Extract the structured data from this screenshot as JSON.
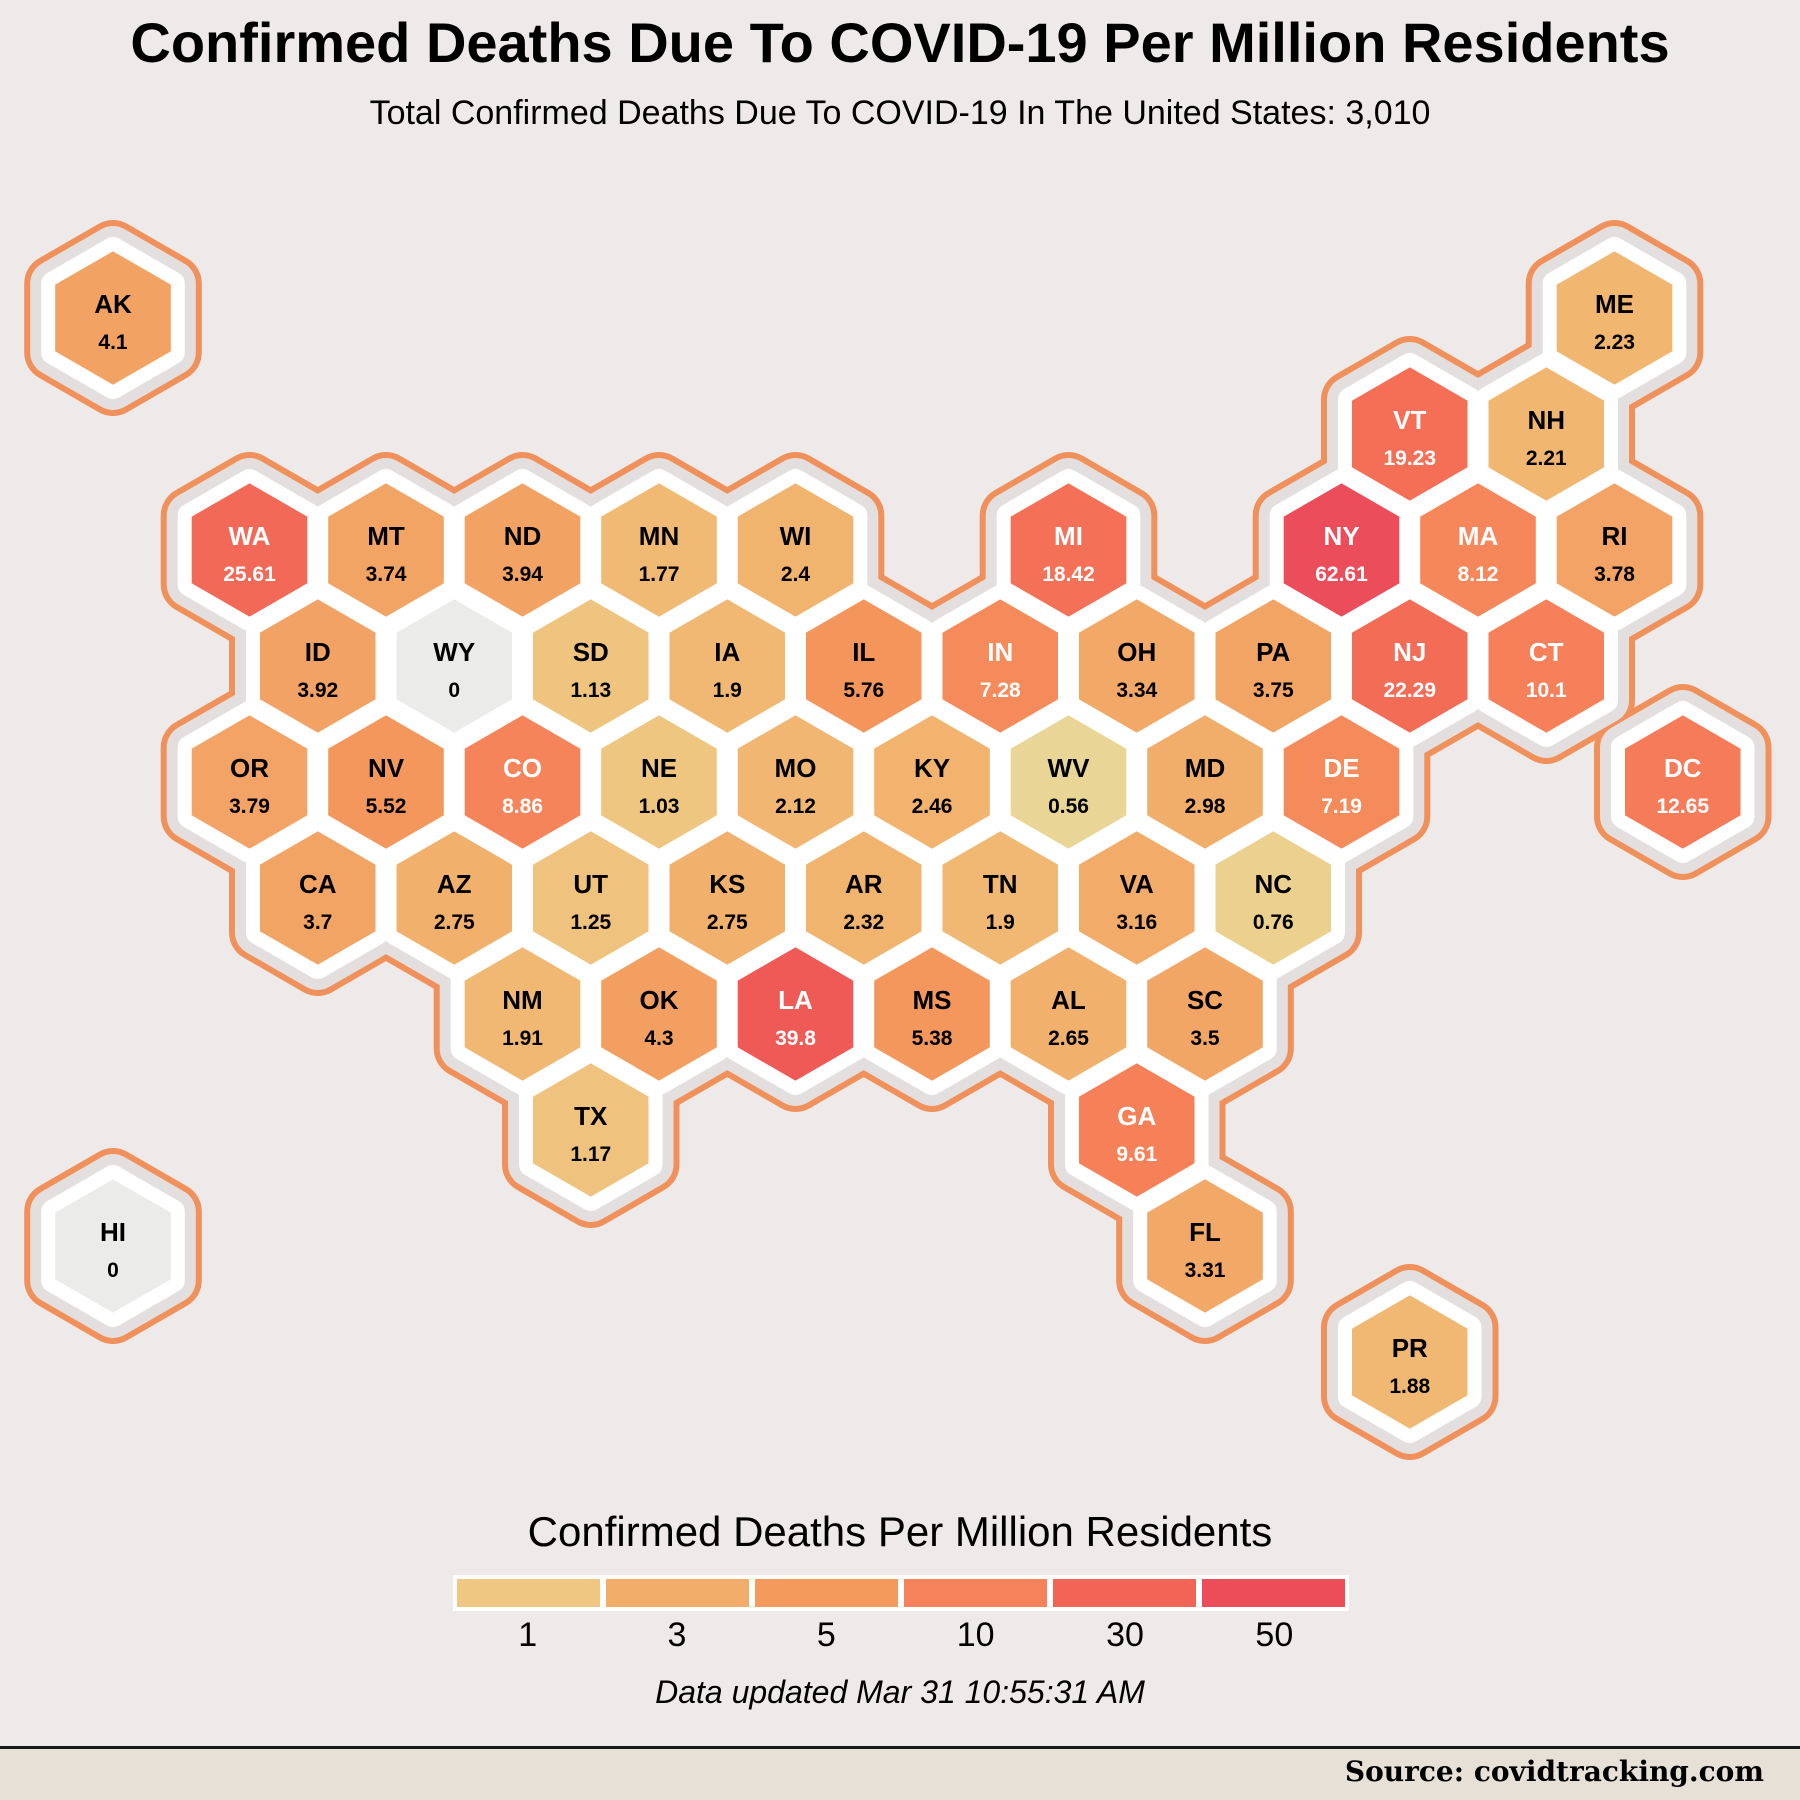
{
  "title": "Confirmed Deaths Due To COVID-19 Per Million Residents",
  "subtitle": "Total Confirmed Deaths Due To COVID-19 In The United States: 3,010",
  "legend": {
    "title": "Confirmed Deaths Per Million Residents",
    "labels": [
      "1",
      "3",
      "5",
      "10",
      "30",
      "50"
    ],
    "colors": [
      "#efc783",
      "#f2ad6b",
      "#f49a5d",
      "#f6825b",
      "#f26456",
      "#ec4d59"
    ]
  },
  "updated": "Data updated Mar 31 10:55:31 AM",
  "source": "Source: covidtracking.com",
  "chart_data": {
    "type": "heatmap",
    "title": "Confirmed Deaths Due To COVID-19 Per Million Residents",
    "subtitle": "Total Confirmed Deaths Due To COVID-19 In The United States: 3,010",
    "metric": "Confirmed deaths per million residents",
    "states": [
      {
        "abbr": "AK",
        "value": "4.1",
        "row": 0,
        "col": 0,
        "color": "#f2a262",
        "label_color": "#000000"
      },
      {
        "abbr": "ME",
        "value": "2.23",
        "row": 0,
        "col": 11,
        "color": "#f1b670",
        "label_color": "#000000"
      },
      {
        "abbr": "VT",
        "value": "19.23",
        "row": 1,
        "col": 9.5,
        "color": "#f46f56",
        "label_color": "#ffffff"
      },
      {
        "abbr": "NH",
        "value": "2.21",
        "row": 1,
        "col": 10.5,
        "color": "#f1b670",
        "label_color": "#000000"
      },
      {
        "abbr": "WA",
        "value": "25.61",
        "row": 2,
        "col": 1,
        "color": "#f26a57",
        "label_color": "#ffffff"
      },
      {
        "abbr": "MT",
        "value": "3.74",
        "row": 2,
        "col": 2,
        "color": "#f2a465",
        "label_color": "#000000"
      },
      {
        "abbr": "ND",
        "value": "3.94",
        "row": 2,
        "col": 3,
        "color": "#f2a263",
        "label_color": "#000000"
      },
      {
        "abbr": "MN",
        "value": "1.77",
        "row": 2,
        "col": 4,
        "color": "#f0ba74",
        "label_color": "#000000"
      },
      {
        "abbr": "WI",
        "value": "2.4",
        "row": 2,
        "col": 5,
        "color": "#f1b46f",
        "label_color": "#000000"
      },
      {
        "abbr": "MI",
        "value": "18.42",
        "row": 2,
        "col": 7,
        "color": "#f47157",
        "label_color": "#ffffff"
      },
      {
        "abbr": "NY",
        "value": "62.61",
        "row": 2,
        "col": 9,
        "color": "#ec4d5b",
        "label_color": "#ffffff"
      },
      {
        "abbr": "MA",
        "value": "8.12",
        "row": 2,
        "col": 10,
        "color": "#f5875a",
        "label_color": "#ffffff"
      },
      {
        "abbr": "RI",
        "value": "3.78",
        "row": 2,
        "col": 11,
        "color": "#f2a365",
        "label_color": "#000000"
      },
      {
        "abbr": "ID",
        "value": "3.92",
        "row": 3,
        "col": 1.5,
        "color": "#f2a264",
        "label_color": "#000000"
      },
      {
        "abbr": "WY",
        "value": "0",
        "row": 3,
        "col": 2.5,
        "color": "#ebebea",
        "label_color": "#000000"
      },
      {
        "abbr": "SD",
        "value": "1.13",
        "row": 3,
        "col": 3.5,
        "color": "#efc47f",
        "label_color": "#000000"
      },
      {
        "abbr": "IA",
        "value": "1.9",
        "row": 3,
        "col": 4.5,
        "color": "#f0b872",
        "label_color": "#000000"
      },
      {
        "abbr": "IL",
        "value": "5.76",
        "row": 3,
        "col": 5.5,
        "color": "#f4955c",
        "label_color": "#000000"
      },
      {
        "abbr": "IN",
        "value": "7.28",
        "row": 3,
        "col": 6.5,
        "color": "#f58b5b",
        "label_color": "#ffffff"
      },
      {
        "abbr": "OH",
        "value": "3.34",
        "row": 3,
        "col": 7.5,
        "color": "#f2a867",
        "label_color": "#000000"
      },
      {
        "abbr": "PA",
        "value": "3.75",
        "row": 3,
        "col": 8.5,
        "color": "#f2a465",
        "label_color": "#000000"
      },
      {
        "abbr": "NJ",
        "value": "22.29",
        "row": 3,
        "col": 9.5,
        "color": "#f36c56",
        "label_color": "#ffffff"
      },
      {
        "abbr": "CT",
        "value": "10.1",
        "row": 3,
        "col": 10.5,
        "color": "#f6805a",
        "label_color": "#ffffff"
      },
      {
        "abbr": "OR",
        "value": "3.79",
        "row": 4,
        "col": 1,
        "color": "#f2a365",
        "label_color": "#000000"
      },
      {
        "abbr": "NV",
        "value": "5.52",
        "row": 4,
        "col": 2,
        "color": "#f4975d",
        "label_color": "#000000"
      },
      {
        "abbr": "CO",
        "value": "8.86",
        "row": 4,
        "col": 3,
        "color": "#f6845a",
        "label_color": "#ffffff"
      },
      {
        "abbr": "NE",
        "value": "1.03",
        "row": 4,
        "col": 4,
        "color": "#eec680",
        "label_color": "#000000"
      },
      {
        "abbr": "MO",
        "value": "2.12",
        "row": 4,
        "col": 5,
        "color": "#f1b671",
        "label_color": "#000000"
      },
      {
        "abbr": "KY",
        "value": "2.46",
        "row": 4,
        "col": 6,
        "color": "#f1b36e",
        "label_color": "#000000"
      },
      {
        "abbr": "WV",
        "value": "0.56",
        "row": 4,
        "col": 7,
        "color": "#e9d696",
        "label_color": "#000000"
      },
      {
        "abbr": "MD",
        "value": "2.98",
        "row": 4,
        "col": 8,
        "color": "#f1ad6a",
        "label_color": "#000000"
      },
      {
        "abbr": "DE",
        "value": "7.19",
        "row": 4,
        "col": 9,
        "color": "#f58b5b",
        "label_color": "#ffffff"
      },
      {
        "abbr": "DC",
        "value": "12.65",
        "row": 4,
        "col": 11.5,
        "color": "#f67b59",
        "label_color": "#ffffff"
      },
      {
        "abbr": "CA",
        "value": "3.7",
        "row": 5,
        "col": 1.5,
        "color": "#f2a465",
        "label_color": "#000000"
      },
      {
        "abbr": "AZ",
        "value": "2.75",
        "row": 5,
        "col": 2.5,
        "color": "#f1b06c",
        "label_color": "#000000"
      },
      {
        "abbr": "UT",
        "value": "1.25",
        "row": 5,
        "col": 3.5,
        "color": "#efc27d",
        "label_color": "#000000"
      },
      {
        "abbr": "KS",
        "value": "2.75",
        "row": 5,
        "col": 4.5,
        "color": "#f1b06c",
        "label_color": "#000000"
      },
      {
        "abbr": "AR",
        "value": "2.32",
        "row": 5,
        "col": 5.5,
        "color": "#f1b46f",
        "label_color": "#000000"
      },
      {
        "abbr": "TN",
        "value": "1.9",
        "row": 5,
        "col": 6.5,
        "color": "#f0b872",
        "label_color": "#000000"
      },
      {
        "abbr": "VA",
        "value": "3.16",
        "row": 5,
        "col": 7.5,
        "color": "#f2ab68",
        "label_color": "#000000"
      },
      {
        "abbr": "NC",
        "value": "0.76",
        "row": 5,
        "col": 8.5,
        "color": "#ecd08e",
        "label_color": "#000000"
      },
      {
        "abbr": "NM",
        "value": "1.91",
        "row": 6,
        "col": 3,
        "color": "#f0b872",
        "label_color": "#000000"
      },
      {
        "abbr": "OK",
        "value": "4.3",
        "row": 6,
        "col": 4,
        "color": "#f39f61",
        "label_color": "#000000"
      },
      {
        "abbr": "LA",
        "value": "39.8",
        "row": 6,
        "col": 5,
        "color": "#ef5a57",
        "label_color": "#ffffff"
      },
      {
        "abbr": "MS",
        "value": "5.38",
        "row": 6,
        "col": 6,
        "color": "#f4975d",
        "label_color": "#000000"
      },
      {
        "abbr": "AL",
        "value": "2.65",
        "row": 6,
        "col": 7,
        "color": "#f1b16d",
        "label_color": "#000000"
      },
      {
        "abbr": "SC",
        "value": "3.5",
        "row": 6,
        "col": 8,
        "color": "#f2a666",
        "label_color": "#000000"
      },
      {
        "abbr": "TX",
        "value": "1.17",
        "row": 7,
        "col": 3.5,
        "color": "#efc37e",
        "label_color": "#000000"
      },
      {
        "abbr": "GA",
        "value": "9.61",
        "row": 7,
        "col": 7.5,
        "color": "#f68159",
        "label_color": "#ffffff"
      },
      {
        "abbr": "HI",
        "value": "0",
        "row": 8,
        "col": 0,
        "color": "#ebebea",
        "label_color": "#000000"
      },
      {
        "abbr": "FL",
        "value": "3.31",
        "row": 8,
        "col": 8,
        "color": "#f2a867",
        "label_color": "#000000"
      },
      {
        "abbr": "PR",
        "value": "1.88",
        "row": 9,
        "col": 9.5,
        "color": "#f0b872",
        "label_color": "#000000"
      }
    ],
    "legend_breaks": [
      1,
      3,
      5,
      10,
      30,
      50
    ]
  }
}
